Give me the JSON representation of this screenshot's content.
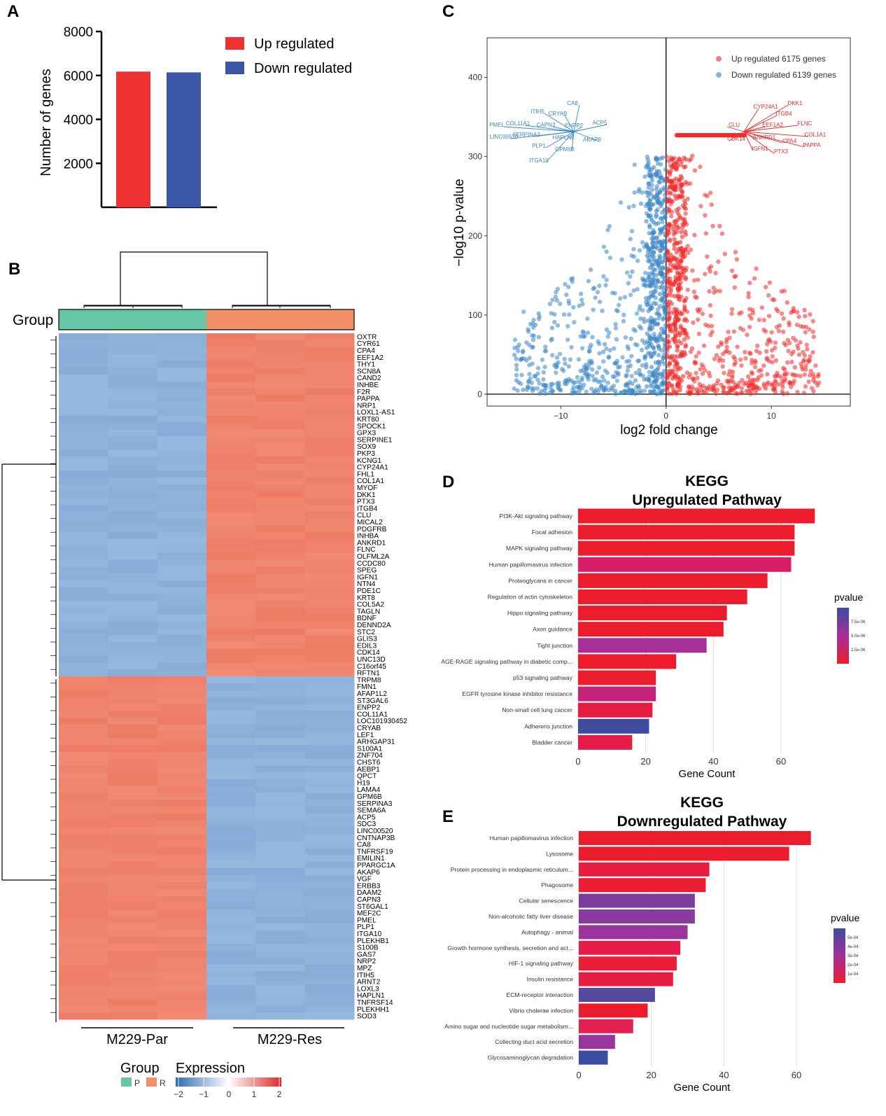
{
  "panels": {
    "a": "A",
    "b": "B",
    "c": "C",
    "d": "D",
    "e": "E"
  },
  "colors": {
    "up": "#ee3231",
    "down": "#3b56a7",
    "heat_high": "#f0836c",
    "heat_low": "#8fb2db",
    "group_p": "#67c6a5",
    "group_r": "#f2906a",
    "volcano_up": "#ee2a2a",
    "volcano_down": "#3a86c5"
  },
  "chart_data": [
    {
      "id": "bar_a",
      "type": "bar",
      "categories": [
        "Up regulated",
        "Down regulated"
      ],
      "values": [
        6175,
        6139
      ],
      "ylabel": "Number of genes",
      "ylim": [
        0,
        8000
      ],
      "yticks": [
        2000,
        4000,
        6000,
        8000
      ],
      "legend": [
        "Up regulated",
        "Down regulated"
      ]
    },
    {
      "id": "volcano_c",
      "type": "scatter",
      "xlabel": "log2 fold change",
      "ylabel": "-log10 p-value",
      "xlim": [
        -17,
        17.5
      ],
      "ylim": [
        -15,
        450
      ],
      "xticks": [
        -10,
        0,
        10
      ],
      "yticks": [
        0,
        100,
        200,
        300,
        400
      ],
      "legend": [
        "Up regulated 6175 genes",
        "Down regulated 6139 genes"
      ],
      "down_labels": [
        "CA8",
        "ITIH5",
        "CRYAB",
        "ACP5",
        "PMEL",
        "COL11A1",
        "CAPN3",
        "ENPP2",
        "LINC00520",
        "SERPINA3",
        "HAPLN1",
        "AKAP6",
        "PLP1",
        "GPM6B",
        "ITGA10"
      ],
      "up_labels": [
        "DKK1",
        "CYP24A1",
        "ITGB4",
        "CLU",
        "EEF1A2",
        "FLNC",
        "COL1A1",
        "CDK14",
        "ANKRD1",
        "CPA4",
        "PAPPA",
        "IGFN1",
        "PTX3"
      ]
    },
    {
      "id": "kegg_up",
      "type": "bar",
      "orientation": "horizontal",
      "title_line1": "KEGG",
      "title_line2": "Upregulated Pathway",
      "categories": [
        "PI3K-Akt signaling pathway",
        "Focal adhesion",
        "MAPK signaling pathway",
        "Human papillomavirus infection",
        "Proteoglycans in cancer",
        "Regulation of actin cytoskeleton",
        "Hippo signaling pathway",
        "Axon guidance",
        "Tight junction",
        "AGE-RAGE signaling pathway in diabetic comp...",
        "p53 signaling pathway",
        "EGFR tyrosine kinase inhibitor resistance",
        "Non-small cell lung cancer",
        "Adherens junction",
        "Bladder cancer"
      ],
      "values": [
        70,
        64,
        64,
        63,
        56,
        50,
        44,
        43,
        38,
        29,
        23,
        23,
        22,
        21,
        16
      ],
      "pvalue_color": [
        "#ec1c2d",
        "#ec1c2d",
        "#ec1c2d",
        "#d91e67",
        "#ec1c2d",
        "#ec1c2d",
        "#ec1c2d",
        "#ec1c2d",
        "#a62f98",
        "#ec1c2d",
        "#ec1c2d",
        "#c4237b",
        "#e51c3e",
        "#3e4b9f",
        "#e51c48"
      ],
      "xlabel": "Gene Count",
      "xlim": [
        0,
        72
      ],
      "xticks": [
        0,
        20,
        40,
        60
      ],
      "legend_title": "pvalue",
      "legend_ticks": [
        "7.5e-06",
        "5.0e-06",
        "2.5e-06"
      ]
    },
    {
      "id": "kegg_down",
      "type": "bar",
      "orientation": "horizontal",
      "title_line1": "KEGG",
      "title_line2": "Downregulated Pathway",
      "categories": [
        "Human papillomavirus infection",
        "Lysosome",
        "Protein processing in endoplasmic reticulum...",
        "Phagosome",
        "Cellular senescence",
        "Non-alcoholic fatty liver disease",
        "Autophagy - animal",
        "Growth hormone synthesis, secretion and act...",
        "HIF-1 signaling pathway",
        "Insulin resistance",
        "ECM-receptor interaction",
        "Vibrio cholerae infection",
        "Amino sugar and nucleotide sugar metabolism...",
        "Collecting duct acid secretion",
        "Glycosaminoglycan degradation"
      ],
      "values": [
        64,
        58,
        36,
        35,
        32,
        32,
        30,
        28,
        27,
        26,
        21,
        19,
        15,
        10,
        8
      ],
      "pvalue_color": [
        "#ec1c2d",
        "#ec1c2d",
        "#e81c3e",
        "#ec1c33",
        "#7b3c9e",
        "#8a399f",
        "#9c349d",
        "#e81c48",
        "#ec1c36",
        "#e81c42",
        "#56479f",
        "#ec1c2d",
        "#e41f52",
        "#9a359e",
        "#3b4da0"
      ],
      "xlabel": "Gene Count",
      "xlim": [
        0,
        70
      ],
      "xticks": [
        0,
        20,
        40,
        60
      ],
      "legend_title": "pvalue",
      "legend_ticks": [
        "5e-04",
        "4e-04",
        "3e-04",
        "2e-04",
        "1e-04"
      ]
    },
    {
      "id": "heatmap_b",
      "type": "heatmap",
      "group_label": "Group",
      "col_groups": [
        "M229-Par",
        "M229-Res"
      ],
      "legend_group_title": "Group",
      "legend_group_items": [
        "P",
        "R"
      ],
      "legend_expr_title": "Expression",
      "legend_expr_ticks": [
        "-2",
        "-1",
        "0",
        "1",
        "2"
      ],
      "up_genes": [
        "OXTR",
        "CYR61",
        "CPA4",
        "EEF1A2",
        "THY1",
        "SCN8A",
        "CAND2",
        "INHBE",
        "F2R",
        "PAPPA",
        "NRP1",
        "LOXL1-AS1",
        "KRT80",
        "SPOCK1",
        "GPX3",
        "SERPINE1",
        "SOX9",
        "PKP3",
        "KCNG1",
        "CYP24A1",
        "FHL1",
        "COL1A1",
        "MYOF",
        "DKK1",
        "PTX3",
        "ITGB4",
        "CLU",
        "MICAL2",
        "PDGFRB",
        "INHBA",
        "ANKRD1",
        "FLNC",
        "OLFML2A",
        "CCDC80",
        "SPEG",
        "IGFN1",
        "NTN4",
        "PDE1C",
        "KRT8",
        "COL5A2",
        "TAGLN",
        "BDNF",
        "DENND2A",
        "STC2",
        "GLIS3",
        "EDIL3",
        "CDK14",
        "UNC13D",
        "C16orf45",
        "RFTN1"
      ],
      "down_genes": [
        "TRPM8",
        "FMN1",
        "AFAP1L2",
        "ST3GAL6",
        "ENPP2",
        "COL11A1",
        "LOC101930452",
        "CRYAB",
        "LEF1",
        "ARHGAP31",
        "S100A1",
        "ZNF704",
        "CHST6",
        "AEBP1",
        "QPCT",
        "H19",
        "LAMA4",
        "GPM6B",
        "SERPINA3",
        "SEMA6A",
        "ACP5",
        "SDC3",
        "LINC00520",
        "CNTNAP3B",
        "CA8",
        "TNFRSF19",
        "EMILIN1",
        "PPARGC1A",
        "AKAP6",
        "VGF",
        "ERBB3",
        "DAAM2",
        "CAPN3",
        "ST6GAL1",
        "MEF2C",
        "PMEL",
        "PLP1",
        "ITGA10",
        "PLEKHB1",
        "S100B",
        "GAS7",
        "NRP2",
        "MPZ",
        "ITIH5",
        "ARNT2",
        "LOXL3",
        "HAPLN1",
        "TNFRSF14",
        "PLEKHH1",
        "SOD3"
      ]
    }
  ]
}
